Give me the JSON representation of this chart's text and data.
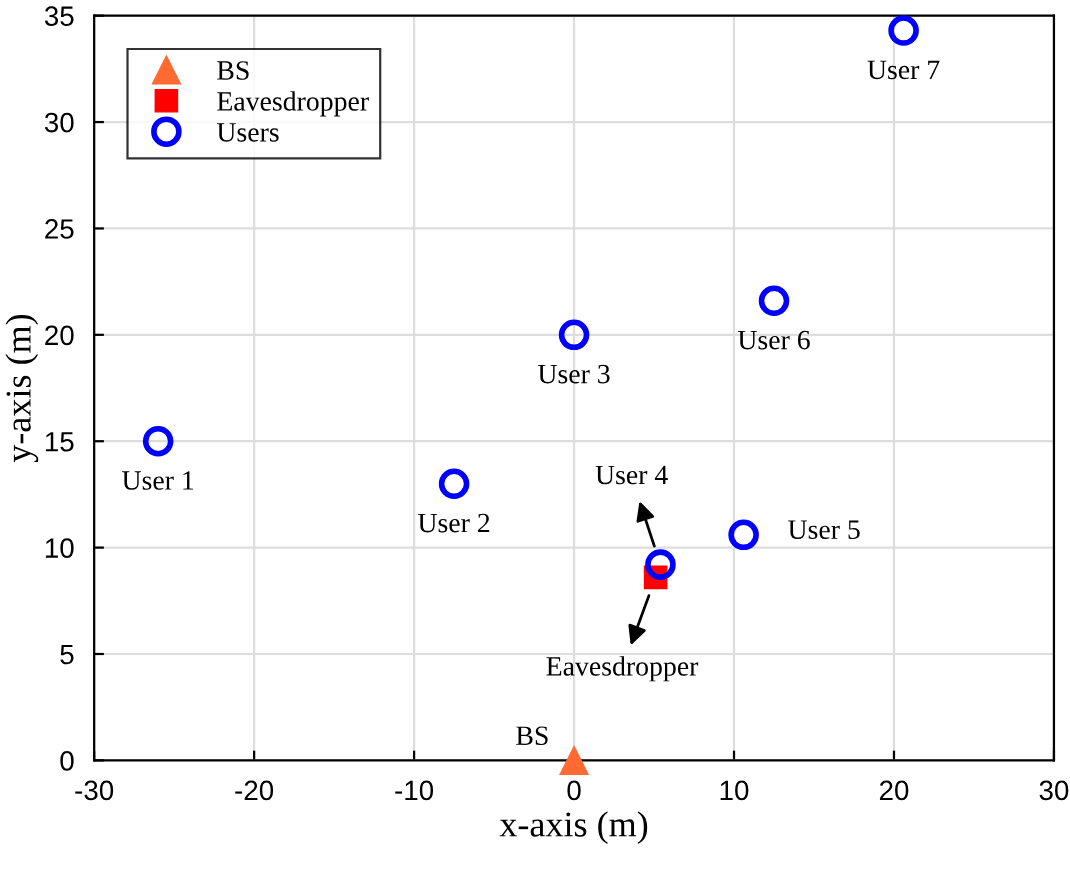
{
  "chart_data": {
    "type": "scatter",
    "xlabel": "x-axis (m)",
    "ylabel": "y-axis (m)",
    "xlim": [
      -30,
      30
    ],
    "xticks": [
      -30,
      -20,
      -10,
      0,
      10,
      20,
      30
    ],
    "ylim": [
      0,
      35
    ],
    "yticks": [
      0,
      5,
      10,
      15,
      20,
      25,
      30,
      35
    ],
    "grid": true,
    "legend": "top left",
    "series": [
      {
        "name": "BS",
        "color": "#ff6a33",
        "marker": "triangle",
        "x": [
          0
        ],
        "values": [
          0
        ]
      },
      {
        "name": "Eavesdropper",
        "color": "#ff0000",
        "marker": "square",
        "x": [
          5.1
        ],
        "values": [
          8.6
        ]
      },
      {
        "name": "Users",
        "color": "#0000ff",
        "marker": "circle",
        "x": [
          -26,
          -7.5,
          0,
          5.4,
          10.6,
          12.5,
          20.6
        ],
        "values": [
          15,
          13,
          20,
          9.2,
          10.6,
          21.6,
          34.3
        ]
      }
    ],
    "annotations": [
      {
        "text": "User 1",
        "x": -26,
        "y": 15
      },
      {
        "text": "User 2",
        "x": -7.5,
        "y": 13
      },
      {
        "text": "User 3",
        "x": 0,
        "y": 20
      },
      "User 4",
      {
        "text": "User 5",
        "x": 10.6,
        "y": 10.6
      },
      {
        "text": "User 6",
        "x": 12.5,
        "y": 21.6
      },
      {
        "text": "User 7",
        "x": 20.6,
        "y": 34.3
      },
      {
        "text": "BS",
        "x": 0,
        "y": 0
      },
      "Eavesdropper"
    ]
  }
}
